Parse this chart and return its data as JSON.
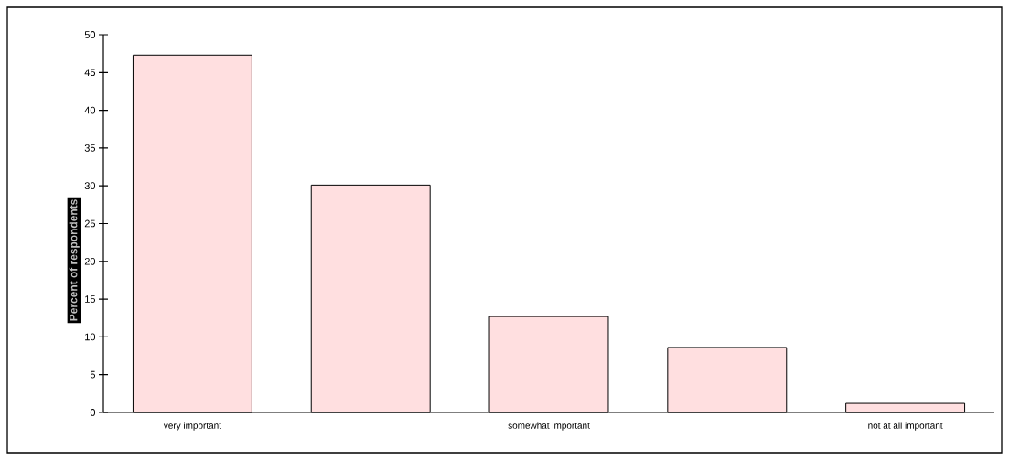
{
  "chart_data": {
    "type": "bar",
    "ylabel": "Percent of respondents",
    "categories": [
      "very important",
      null,
      "somewhat important",
      null,
      "not at all important"
    ],
    "values": [
      47.3,
      30.1,
      12.7,
      8.6,
      1.2
    ],
    "color": "#ffdfe0",
    "ylim": [
      0,
      50
    ],
    "yticks": [
      0,
      5,
      10,
      15,
      20,
      25,
      30,
      35,
      40,
      45,
      50
    ]
  }
}
